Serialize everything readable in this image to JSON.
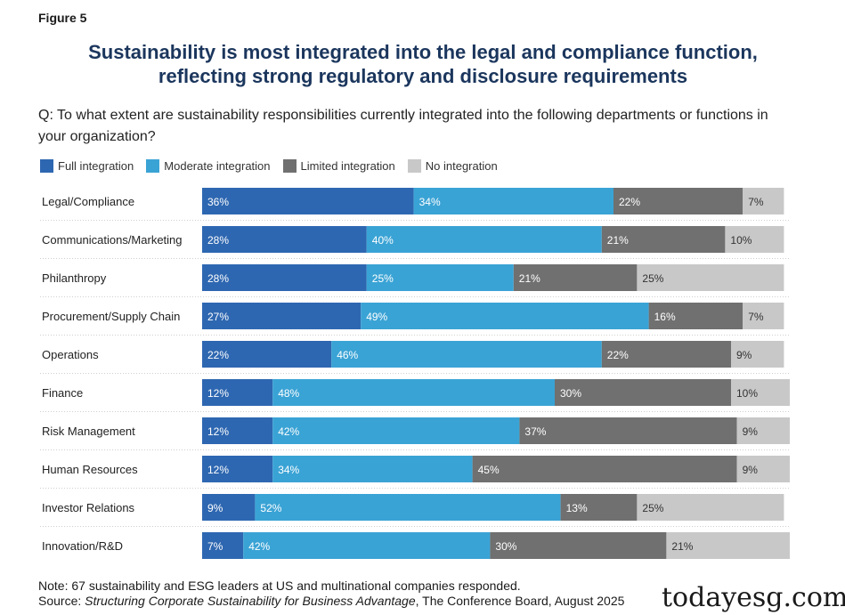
{
  "figure_label": "Figure 5",
  "title_line1": "Sustainability is most integrated into the legal and compliance function,",
  "title_line2": "reflecting strong regulatory and disclosure requirements",
  "question": "Q: To what extent are sustainability responsibilities currently integrated into the following departments or functions in your organization?",
  "colors": {
    "full": "#2e67b1",
    "moderate": "#3aa3d5",
    "limited": "#707070",
    "none": "#c8c8c8"
  },
  "chart_data": {
    "type": "bar",
    "orientation": "horizontal-stacked",
    "xlim": [
      0,
      100
    ],
    "legend_position": "top-left",
    "categories": [
      "Legal/Compliance",
      "Communications/Marketing",
      "Philanthropy",
      "Procurement/Supply Chain",
      "Operations",
      "Finance",
      "Risk Management",
      "Human Resources",
      "Investor Relations",
      "Innovation/R&D"
    ],
    "series": [
      {
        "key": "full",
        "name": "Full integration",
        "values": [
          36,
          28,
          28,
          27,
          22,
          12,
          12,
          12,
          9,
          7
        ]
      },
      {
        "key": "moderate",
        "name": "Moderate integration",
        "values": [
          34,
          40,
          25,
          49,
          46,
          48,
          42,
          34,
          52,
          42
        ]
      },
      {
        "key": "limited",
        "name": "Limited integration",
        "values": [
          22,
          21,
          21,
          16,
          22,
          30,
          37,
          45,
          13,
          30
        ]
      },
      {
        "key": "none",
        "name": "No integration",
        "values": [
          7,
          10,
          25,
          7,
          9,
          10,
          9,
          9,
          25,
          21
        ]
      }
    ]
  },
  "note": "Note: 67 sustainability and ESG leaders at US and multinational companies responded.",
  "source_prefix": "Source: ",
  "source_title": "Structuring Corporate Sustainability for Business Advantage",
  "source_suffix": ", The Conference Board, August 2025",
  "watermark": "todayesg.com"
}
